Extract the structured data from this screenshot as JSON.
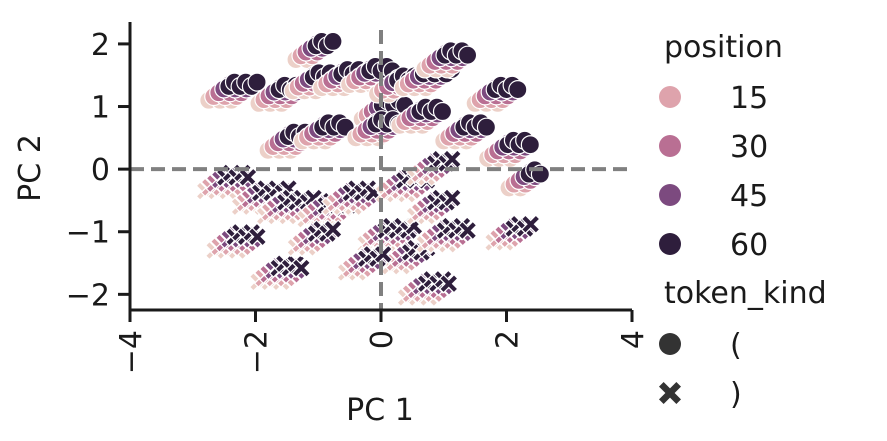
{
  "chart_data": {
    "type": "scatter",
    "xlabel": "PC 1",
    "ylabel": "PC 2",
    "xlim": [
      -4,
      4
    ],
    "ylim": [
      -2.25,
      2.35
    ],
    "xticks": [
      "−4",
      "−2",
      "0",
      "2",
      "4"
    ],
    "xtick_values": [
      -4,
      -2,
      0,
      2,
      4
    ],
    "yticks": [
      "−2",
      "−1",
      "0",
      "1",
      "2"
    ],
    "ytick_values": [
      -2,
      -1,
      0,
      1,
      2
    ],
    "reference_lines": {
      "x": 0,
      "y": 0,
      "style": "dashed",
      "color": "#808080"
    },
    "legend": {
      "placement": "right-outside",
      "hue_title": "position",
      "hue_entries": [
        {
          "label": "15",
          "color": "#dea3ac"
        },
        {
          "label": "30",
          "color": "#b96f93"
        },
        {
          "label": "45",
          "color": "#7c4a7f"
        },
        {
          "label": "60",
          "color": "#2e1e3c"
        }
      ],
      "style_title": "token_kind",
      "style_entries": [
        {
          "label": "(",
          "marker": "circle"
        },
        {
          "label": ")",
          "marker": "x"
        }
      ]
    },
    "colors": {
      "15": "#dea3ac",
      "30": "#b96f93",
      "45": "#7c4a7f",
      "60": "#2e1e3c",
      "low": "#ecd0c8"
    },
    "clusters": {
      "open_paren": [
        {
          "x": -2.2,
          "y": 1.35,
          "n": 6
        },
        {
          "x": -1.4,
          "y": 1.3,
          "n": 6
        },
        {
          "x": -1.3,
          "y": 0.55,
          "n": 5
        },
        {
          "x": -0.9,
          "y": 2.0,
          "n": 4
        },
        {
          "x": -0.9,
          "y": 1.5,
          "n": 5
        },
        {
          "x": -0.75,
          "y": 0.7,
          "n": 5
        },
        {
          "x": -0.4,
          "y": 1.55,
          "n": 6
        },
        {
          "x": 0.0,
          "y": 1.6,
          "n": 5
        },
        {
          "x": 0.2,
          "y": 1.05,
          "n": 5
        },
        {
          "x": 0.1,
          "y": 0.75,
          "n": 5
        },
        {
          "x": 0.4,
          "y": 1.45,
          "n": 4
        },
        {
          "x": 0.9,
          "y": 1.55,
          "n": 6
        },
        {
          "x": 0.8,
          "y": 0.95,
          "n": 5
        },
        {
          "x": 1.2,
          "y": 1.85,
          "n": 5
        },
        {
          "x": 1.5,
          "y": 0.7,
          "n": 5
        },
        {
          "x": 2.0,
          "y": 1.3,
          "n": 5
        },
        {
          "x": 2.2,
          "y": 0.42,
          "n": 5
        },
        {
          "x": 2.45,
          "y": -0.05,
          "n": 3
        }
      ],
      "close_paren": [
        {
          "x": -2.3,
          "y": -0.1,
          "n": 5
        },
        {
          "x": -1.7,
          "y": -0.35,
          "n": 6
        },
        {
          "x": -1.3,
          "y": -0.5,
          "n": 6
        },
        {
          "x": -0.7,
          "y": -0.55,
          "n": 5
        },
        {
          "x": -2.15,
          "y": -1.05,
          "n": 5
        },
        {
          "x": -1.45,
          "y": -1.55,
          "n": 5
        },
        {
          "x": -0.9,
          "y": -1.0,
          "n": 4
        },
        {
          "x": -0.3,
          "y": -0.35,
          "n": 5
        },
        {
          "x": 0.3,
          "y": -0.95,
          "n": 6
        },
        {
          "x": 0.55,
          "y": -0.15,
          "n": 5
        },
        {
          "x": 0.6,
          "y": -1.3,
          "n": 4
        },
        {
          "x": 0.9,
          "y": -1.8,
          "n": 5
        },
        {
          "x": 1.0,
          "y": 0.12,
          "n": 4
        },
        {
          "x": 1.2,
          "y": -0.95,
          "n": 5
        },
        {
          "x": 1.0,
          "y": -0.5,
          "n": 4
        },
        {
          "x": 2.25,
          "y": -0.92,
          "n": 4
        },
        {
          "x": -0.1,
          "y": -1.4,
          "n": 4
        }
      ]
    }
  }
}
